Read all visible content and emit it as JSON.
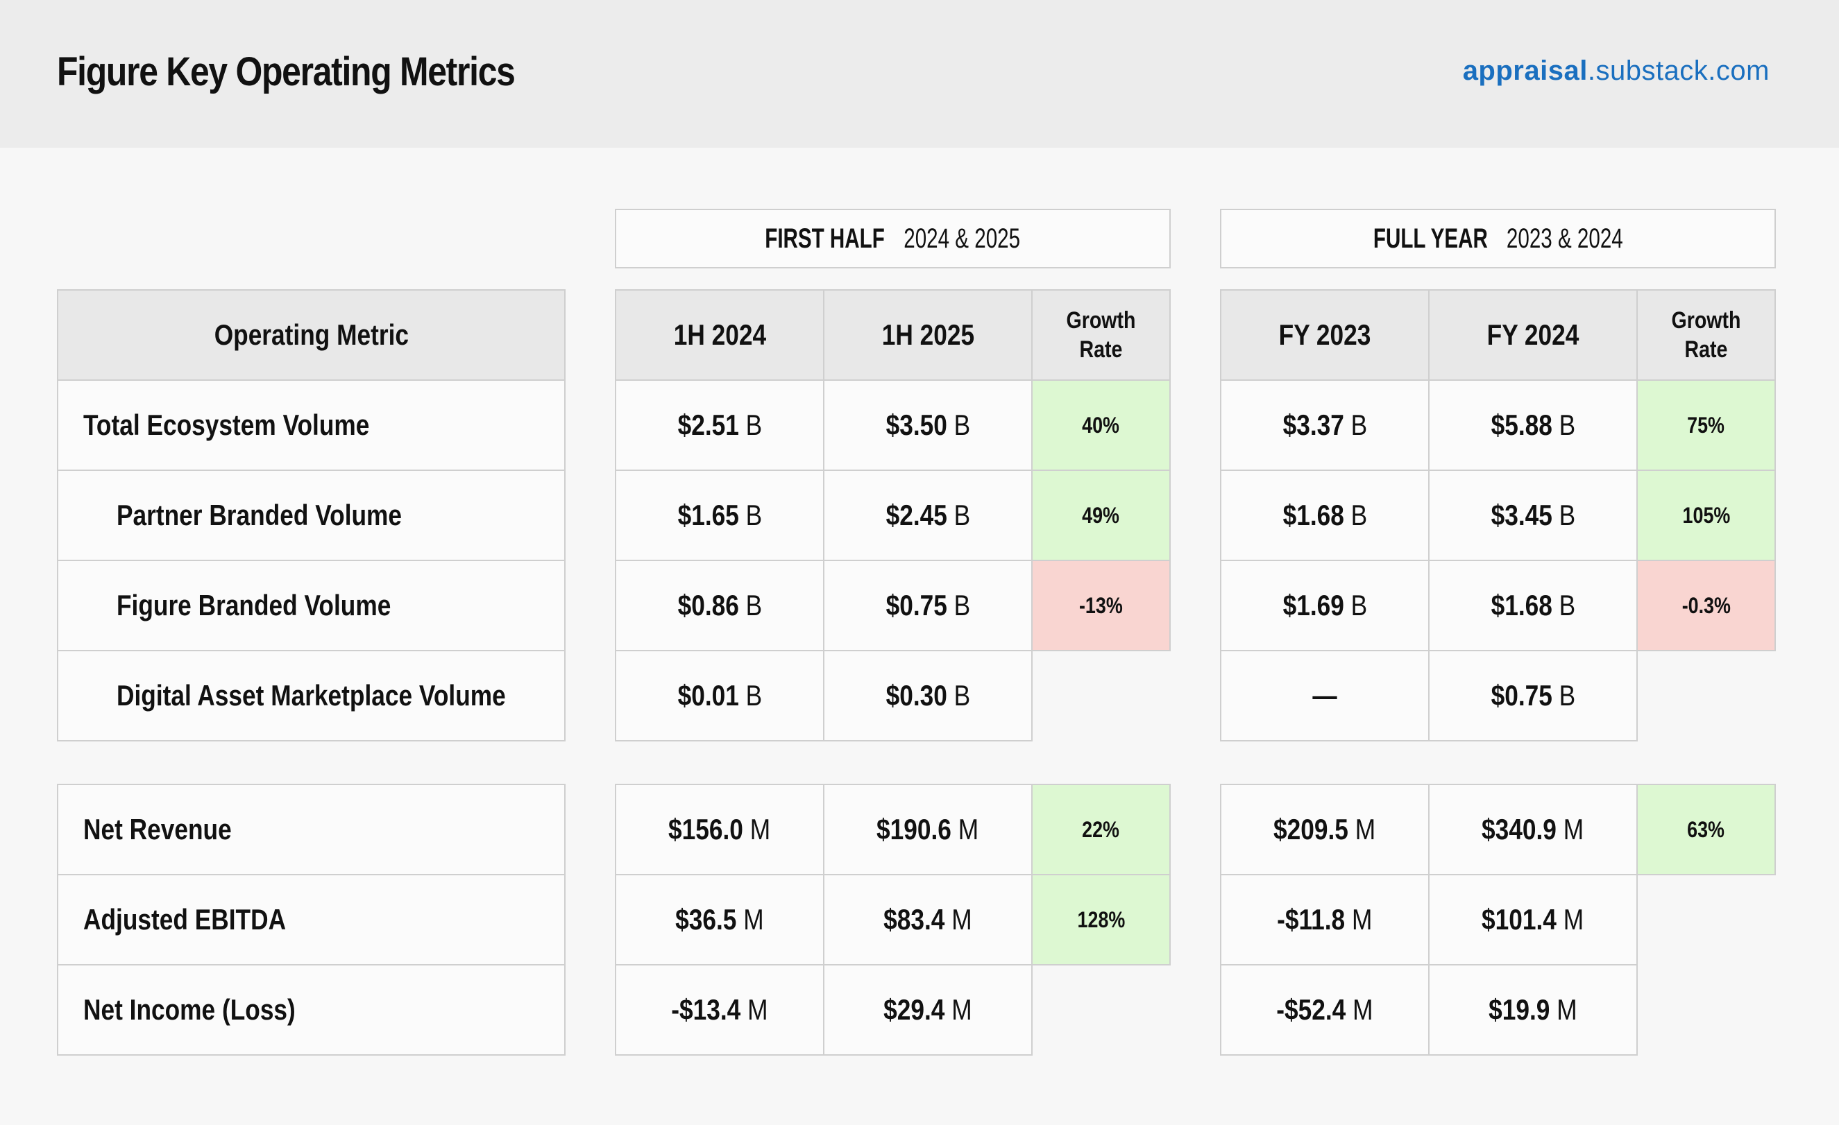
{
  "header": {
    "title": "Figure Key Operating Metrics",
    "brand_bold": "appraisal",
    "brand_rest": ".substack.com",
    "brand_color": "#1a6fbf"
  },
  "sections": {
    "first_half": {
      "label_bold": "FIRST HALF",
      "label_rest": " 2024 & 2025"
    },
    "full_year": {
      "label_bold": "FULL YEAR",
      "label_rest": " 2023 & 2024"
    }
  },
  "columns": {
    "metric": "Operating Metric",
    "h1_2024": "1H 2024",
    "h1_2025": "1H 2025",
    "growth_line1": "Growth",
    "growth_line2": "Rate",
    "fy_2023": "FY 2023",
    "fy_2024": "FY 2024"
  },
  "colors": {
    "positive": "#ddf8d2",
    "negative": "#f9d5d1"
  },
  "rows": [
    {
      "metric": "Total Ecosystem Volume",
      "h1_2024": {
        "num": "$2.51",
        "unit": " B"
      },
      "h1_2025": {
        "num": "$3.50",
        "unit": " B"
      },
      "h1_growth": "40%",
      "fy_2023": {
        "num": "$3.37",
        "unit": " B"
      },
      "fy_2024": {
        "num": "$5.88",
        "unit": " B"
      },
      "fy_growth": "75%"
    },
    {
      "metric": "Partner Branded Volume",
      "h1_2024": {
        "num": "$1.65",
        "unit": " B"
      },
      "h1_2025": {
        "num": "$2.45",
        "unit": " B"
      },
      "h1_growth": "49%",
      "fy_2023": {
        "num": "$1.68",
        "unit": " B"
      },
      "fy_2024": {
        "num": "$3.45",
        "unit": " B"
      },
      "fy_growth": "105%"
    },
    {
      "metric": "Figure Branded Volume",
      "h1_2024": {
        "num": "$0.86",
        "unit": " B"
      },
      "h1_2025": {
        "num": "$0.75",
        "unit": " B"
      },
      "h1_growth": "-13%",
      "fy_2023": {
        "num": "$1.69",
        "unit": " B"
      },
      "fy_2024": {
        "num": "$1.68",
        "unit": " B"
      },
      "fy_growth": "-0.3%"
    },
    {
      "metric": "Digital Asset Marketplace Volume",
      "h1_2024": {
        "num": "$0.01",
        "unit": " B"
      },
      "h1_2025": {
        "num": "$0.30",
        "unit": " B"
      },
      "fy_2023": {
        "num": "—",
        "unit": ""
      },
      "fy_2024": {
        "num": "$0.75",
        "unit": " B"
      }
    },
    {
      "metric": "Net Revenue",
      "h1_2024": {
        "num": "$156.0",
        "unit": " M"
      },
      "h1_2025": {
        "num": "$190.6",
        "unit": " M"
      },
      "h1_growth": "22%",
      "fy_2023": {
        "num": "$209.5",
        "unit": " M"
      },
      "fy_2024": {
        "num": "$340.9",
        "unit": " M"
      },
      "fy_growth": "63%"
    },
    {
      "metric": "Adjusted EBITDA",
      "h1_2024": {
        "num": "$36.5",
        "unit": " M"
      },
      "h1_2025": {
        "num": "$83.4",
        "unit": " M"
      },
      "h1_growth": "128%",
      "fy_2023": {
        "num": "-$11.8",
        "unit": " M"
      },
      "fy_2024": {
        "num": "$101.4",
        "unit": " M"
      }
    },
    {
      "metric": "Net Income (Loss)",
      "h1_2024": {
        "num": "-$13.4",
        "unit": " M"
      },
      "h1_2025": {
        "num": "$29.4",
        "unit": " M"
      },
      "fy_2023": {
        "num": "-$52.4",
        "unit": " M"
      },
      "fy_2024": {
        "num": "$19.9",
        "unit": " M"
      }
    }
  ]
}
